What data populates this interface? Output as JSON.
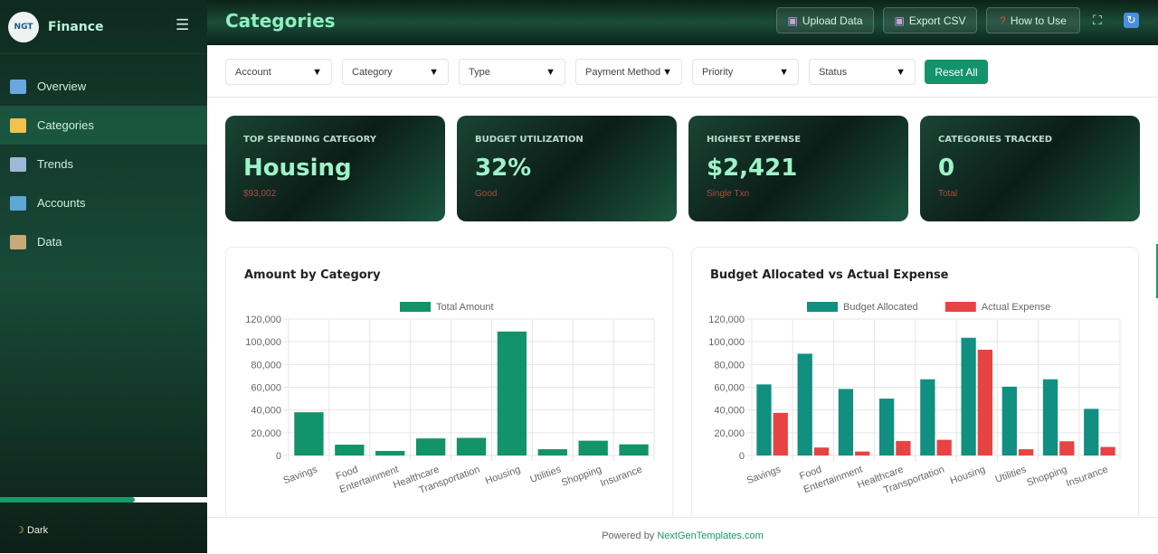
{
  "sidebar": {
    "brand": "Finance",
    "logo_text": "NGT",
    "items": [
      {
        "label": "Overview",
        "icon": "bar-chart-icon",
        "color": "#6aa7e0"
      },
      {
        "label": "Categories",
        "icon": "folder-icon",
        "color": "#f2c14e"
      },
      {
        "label": "Trends",
        "icon": "trend-chart-icon",
        "color": "#9fb8d8"
      },
      {
        "label": "Accounts",
        "icon": "credit-card-icon",
        "color": "#5fa6d8"
      },
      {
        "label": "Data",
        "icon": "clipboard-icon",
        "color": "#c9a97a"
      }
    ],
    "active": "Categories",
    "theme_label": "Dark",
    "theme_icon": "moon-icon",
    "scroll_fraction": 0.65
  },
  "header": {
    "title": "Categories",
    "buttons": [
      {
        "label": "Upload Data",
        "icon": "inbox-icon"
      },
      {
        "label": "Export CSV",
        "icon": "outbox-icon"
      },
      {
        "label": "How to Use",
        "icon": "question-icon"
      }
    ]
  },
  "filters": {
    "items": [
      "Account",
      "Category",
      "Type",
      "Payment Method",
      "Priority",
      "Status"
    ],
    "reset": "Reset All"
  },
  "kpis": [
    {
      "label": "TOP SPENDING CATEGORY",
      "value": "Housing",
      "sub": "$93,002"
    },
    {
      "label": "BUDGET UTILIZATION",
      "value": "32%",
      "sub": "Good"
    },
    {
      "label": "HIGHEST EXPENSE",
      "value": "$2,421",
      "sub": "Single Txn"
    },
    {
      "label": "CATEGORIES TRACKED",
      "value": "0",
      "sub": "Total"
    }
  ],
  "chart_data": [
    {
      "type": "bar",
      "title": "Amount by Category",
      "categories": [
        "Savings",
        "Food",
        "Entertainment",
        "Healthcare",
        "Transportation",
        "Housing",
        "Utilities",
        "Shopping",
        "Insurance"
      ],
      "series": [
        {
          "name": "Total Amount",
          "color": "#12936a",
          "values": [
            38000,
            9500,
            4000,
            15000,
            15500,
            109000,
            5500,
            13000,
            9800
          ]
        }
      ],
      "ylim": [
        0,
        120000
      ],
      "yticks": [
        "0",
        "20,000",
        "40,000",
        "60,000",
        "80,000",
        "100,000",
        "120,000"
      ],
      "grid": true,
      "legend": "top"
    },
    {
      "type": "bar",
      "title": "Budget Allocated vs Actual Expense",
      "categories": [
        "Savings",
        "Food",
        "Entertainment",
        "Healthcare",
        "Transportation",
        "Housing",
        "Utilities",
        "Shopping",
        "Insurance"
      ],
      "series": [
        {
          "name": "Budget Allocated",
          "color": "#118f80",
          "values": [
            62500,
            89500,
            58500,
            50000,
            67000,
            103500,
            60500,
            67000,
            41000
          ]
        },
        {
          "name": "Actual Expense",
          "color": "#e84343",
          "values": [
            37500,
            7000,
            3500,
            12800,
            13800,
            93000,
            5500,
            12500,
            7500
          ]
        }
      ],
      "ylim": [
        0,
        120000
      ],
      "yticks": [
        "0",
        "20,000",
        "40,000",
        "60,000",
        "80,000",
        "100,000",
        "120,000"
      ],
      "grid": true,
      "legend": "top"
    }
  ],
  "footer": {
    "prefix": "Powered by ",
    "link": "NextGenTemplates.com"
  }
}
